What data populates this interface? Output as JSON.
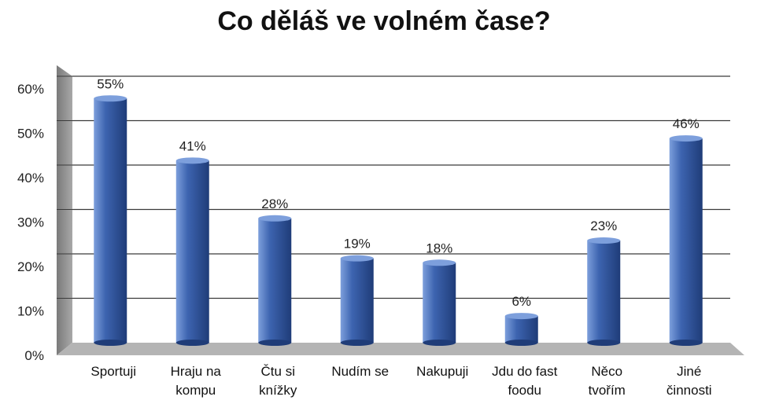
{
  "chart_data": {
    "type": "bar",
    "title": "Co děláš ve volném čase?",
    "categories": [
      [
        "Sportuji"
      ],
      [
        "Hraju na",
        "kompu"
      ],
      [
        "Čtu si",
        "knížky"
      ],
      [
        "Nudím se"
      ],
      [
        "Nakupuji"
      ],
      [
        "Jdu do fast",
        "foodu"
      ],
      [
        "Něco",
        "tvořím"
      ],
      [
        "Jiné",
        "činnosti"
      ]
    ],
    "values": [
      55,
      41,
      28,
      19,
      18,
      6,
      23,
      46
    ],
    "value_labels": [
      "55%",
      "41%",
      "28%",
      "19%",
      "18%",
      "6%",
      "23%",
      "46%"
    ],
    "yticks": [
      "0%",
      "10%",
      "20%",
      "30%",
      "40%",
      "50%",
      "60%"
    ],
    "ylim": [
      0,
      60
    ],
    "xlabel": "",
    "ylabel": "",
    "grid": true,
    "legend": "none",
    "colors": {
      "bar": "#3d64b0",
      "bar_dark": "#1f3c78",
      "bar_light": "#7d9fdc",
      "wall": "#8c8c8c",
      "floor": "#b4b4b4"
    }
  }
}
